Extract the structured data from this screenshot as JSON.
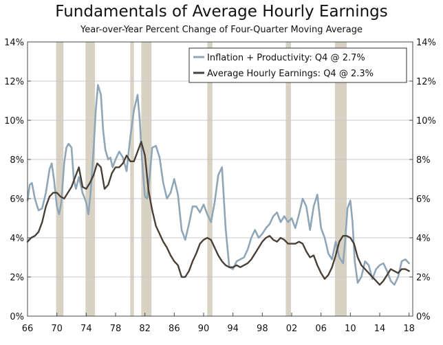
{
  "chart_data": {
    "type": "line",
    "title": "Fundamentals of Average Hourly Earnings",
    "subtitle": "Year-over-Year Percent Change of Four-Quarter Moving Average",
    "xlabel": "",
    "ylabel": "",
    "xlim": [
      1966,
      2018.5
    ],
    "ylim": [
      0,
      14
    ],
    "y_ticks": [
      0,
      2,
      4,
      6,
      8,
      10,
      12,
      14
    ],
    "y_tick_labels": [
      "0%",
      "2%",
      "4%",
      "6%",
      "8%",
      "10%",
      "12%",
      "14%"
    ],
    "x_ticks": [
      1966,
      1970,
      1974,
      1978,
      1982,
      1986,
      1990,
      1994,
      1998,
      2002,
      2006,
      2010,
      2014,
      2018
    ],
    "x_tick_labels": [
      "66",
      "70",
      "74",
      "78",
      "82",
      "86",
      "90",
      "94",
      "98",
      "02",
      "06",
      "10",
      "14",
      "18"
    ],
    "grid": "horizontal",
    "legend_position": "top-right",
    "recessions": [
      [
        1969.9,
        1970.9
      ],
      [
        1973.9,
        1975.2
      ],
      [
        1980.0,
        1980.5
      ],
      [
        1981.5,
        1982.9
      ],
      [
        1990.5,
        1991.2
      ],
      [
        2001.2,
        2001.9
      ],
      [
        2007.9,
        2009.5
      ]
    ],
    "colors": {
      "recession": "#d8d2c4",
      "inflation_productivity": "#8fa6b8",
      "average_hourly_earnings": "#4a3f35",
      "grid": "#c8c8c8",
      "frame": "#444444"
    },
    "series": [
      {
        "name": "Inflation + Productivity: Q4 @ 2.7%",
        "key": "inflation_productivity",
        "x": [
          1966.0,
          1966.3,
          1966.6,
          1967.0,
          1967.5,
          1968.0,
          1968.5,
          1969.0,
          1969.3,
          1969.6,
          1970.0,
          1970.3,
          1970.6,
          1971.0,
          1971.3,
          1971.6,
          1972.0,
          1972.3,
          1972.6,
          1973.0,
          1973.5,
          1974.0,
          1974.3,
          1974.6,
          1975.0,
          1975.3,
          1975.6,
          1976.0,
          1976.3,
          1976.6,
          1977.0,
          1977.3,
          1977.6,
          1978.0,
          1978.5,
          1979.0,
          1979.5,
          1980.0,
          1980.5,
          1981.0,
          1981.3,
          1981.6,
          1982.0,
          1982.3,
          1982.6,
          1983.0,
          1983.5,
          1984.0,
          1984.5,
          1985.0,
          1985.5,
          1986.0,
          1986.5,
          1987.0,
          1987.5,
          1988.0,
          1988.5,
          1989.0,
          1989.5,
          1990.0,
          1990.5,
          1991.0,
          1991.5,
          1992.0,
          1992.5,
          1993.0,
          1993.5,
          1994.0,
          1994.5,
          1995.0,
          1995.5,
          1996.0,
          1996.5,
          1997.0,
          1997.5,
          1998.0,
          1998.5,
          1999.0,
          1999.5,
          2000.0,
          2000.5,
          2001.0,
          2001.5,
          2002.0,
          2002.5,
          2003.0,
          2003.5,
          2004.0,
          2004.5,
          2005.0,
          2005.5,
          2006.0,
          2006.5,
          2007.0,
          2007.5,
          2008.0,
          2008.5,
          2009.0,
          2009.3,
          2009.6,
          2010.0,
          2010.3,
          2010.6,
          2011.0,
          2011.5,
          2012.0,
          2012.5,
          2013.0,
          2013.5,
          2014.0,
          2014.5,
          2015.0,
          2015.5,
          2016.0,
          2016.5,
          2017.0,
          2017.5,
          2018.0
        ],
        "values": [
          5.9,
          6.7,
          6.8,
          6.0,
          5.4,
          5.5,
          6.3,
          7.5,
          7.8,
          7.0,
          5.6,
          5.2,
          5.8,
          7.8,
          8.6,
          8.8,
          8.6,
          7.0,
          6.5,
          7.1,
          6.3,
          5.8,
          5.2,
          6.3,
          8.5,
          10.5,
          11.8,
          11.3,
          9.5,
          8.5,
          8.0,
          8.1,
          7.6,
          8.0,
          8.4,
          8.1,
          7.4,
          9.1,
          10.5,
          11.3,
          10.0,
          8.0,
          6.1,
          6.0,
          7.0,
          8.6,
          8.7,
          8.1,
          6.8,
          6.0,
          6.3,
          7.0,
          6.2,
          4.4,
          3.9,
          4.7,
          5.6,
          5.6,
          5.3,
          5.7,
          5.2,
          4.8,
          5.8,
          7.2,
          7.6,
          4.5,
          2.5,
          2.4,
          2.8,
          2.9,
          3.0,
          3.4,
          4.0,
          4.4,
          4.0,
          4.2,
          4.5,
          4.7,
          5.1,
          5.3,
          4.8,
          5.1,
          4.8,
          5.0,
          4.5,
          5.2,
          6.0,
          5.6,
          4.4,
          5.6,
          6.2,
          4.5,
          4.0,
          3.2,
          2.9,
          3.8,
          3.0,
          2.7,
          3.9,
          5.5,
          5.9,
          4.8,
          2.8,
          1.7,
          2.0,
          2.8,
          2.6,
          1.9,
          2.4,
          2.6,
          2.7,
          2.3,
          1.8,
          1.6,
          2.0,
          2.8,
          2.9,
          2.7
        ]
      },
      {
        "name": "Average Hourly Earnings: Q4 @ 2.3%",
        "key": "average_hourly_earnings",
        "x": [
          1966.0,
          1966.5,
          1967.0,
          1967.5,
          1968.0,
          1968.5,
          1969.0,
          1969.5,
          1970.0,
          1970.5,
          1971.0,
          1971.5,
          1972.0,
          1972.5,
          1973.0,
          1973.5,
          1974.0,
          1974.5,
          1975.0,
          1975.5,
          1976.0,
          1976.5,
          1977.0,
          1977.5,
          1978.0,
          1978.5,
          1979.0,
          1979.5,
          1980.0,
          1980.5,
          1981.0,
          1981.5,
          1982.0,
          1982.5,
          1983.0,
          1983.5,
          1984.0,
          1984.5,
          1985.0,
          1985.5,
          1986.0,
          1986.5,
          1987.0,
          1987.5,
          1988.0,
          1988.5,
          1989.0,
          1989.5,
          1990.0,
          1990.5,
          1991.0,
          1991.5,
          1992.0,
          1992.5,
          1993.0,
          1993.5,
          1994.0,
          1994.5,
          1995.0,
          1995.5,
          1996.0,
          1996.5,
          1997.0,
          1997.5,
          1998.0,
          1998.5,
          1999.0,
          1999.5,
          2000.0,
          2000.5,
          2001.0,
          2001.5,
          2002.0,
          2002.5,
          2003.0,
          2003.5,
          2004.0,
          2004.5,
          2005.0,
          2005.5,
          2006.0,
          2006.5,
          2007.0,
          2007.5,
          2008.0,
          2008.5,
          2009.0,
          2009.5,
          2010.0,
          2010.5,
          2011.0,
          2011.5,
          2012.0,
          2012.5,
          2013.0,
          2013.5,
          2014.0,
          2014.5,
          2015.0,
          2015.5,
          2016.0,
          2016.5,
          2017.0,
          2017.5,
          2018.0
        ],
        "values": [
          3.8,
          4.0,
          4.1,
          4.3,
          4.8,
          5.6,
          6.1,
          6.3,
          6.3,
          6.1,
          6.0,
          6.3,
          6.6,
          7.1,
          7.6,
          6.6,
          6.5,
          6.8,
          7.2,
          7.8,
          7.6,
          6.5,
          6.7,
          7.3,
          7.6,
          7.6,
          7.8,
          8.2,
          7.9,
          7.9,
          8.4,
          8.9,
          8.2,
          6.4,
          5.4,
          4.6,
          4.2,
          3.8,
          3.5,
          3.1,
          2.8,
          2.6,
          2.0,
          2.0,
          2.3,
          2.8,
          3.2,
          3.7,
          3.9,
          4.0,
          3.9,
          3.5,
          3.1,
          2.8,
          2.6,
          2.5,
          2.5,
          2.6,
          2.5,
          2.6,
          2.7,
          2.9,
          3.2,
          3.5,
          3.8,
          4.0,
          4.1,
          3.9,
          3.8,
          4.0,
          3.9,
          3.7,
          3.7,
          3.7,
          3.8,
          3.7,
          3.3,
          3.0,
          3.1,
          2.6,
          2.2,
          1.9,
          2.1,
          2.5,
          3.1,
          3.8,
          4.1,
          4.1,
          4.0,
          3.7,
          3.0,
          2.6,
          2.4,
          2.2,
          2.0,
          1.8,
          1.6,
          1.8,
          2.1,
          2.4,
          2.3,
          2.2,
          2.4,
          2.4,
          2.3
        ]
      }
    ]
  }
}
